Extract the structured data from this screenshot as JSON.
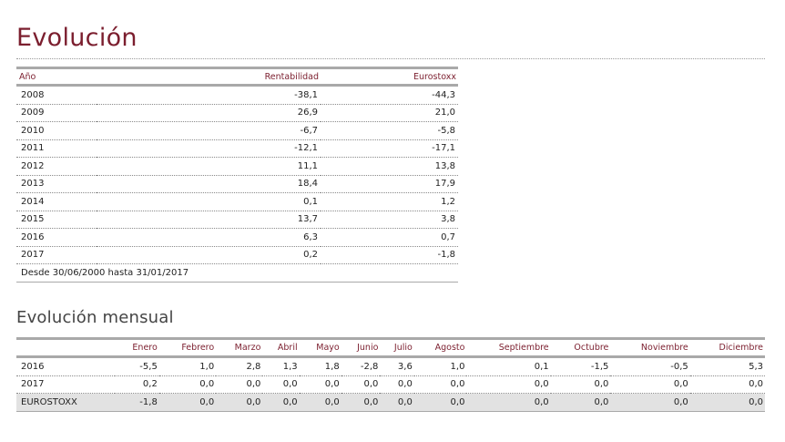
{
  "title": "Evolución",
  "annual": {
    "headers": [
      "Año",
      "Rentabilidad",
      "Eurostoxx"
    ],
    "rows": [
      [
        "2008",
        "-38,1",
        "-44,3"
      ],
      [
        "2009",
        "26,9",
        "21,0"
      ],
      [
        "2010",
        "-6,7",
        "-5,8"
      ],
      [
        "2011",
        "-12,1",
        "-17,1"
      ],
      [
        "2012",
        "11,1",
        "13,8"
      ],
      [
        "2013",
        "18,4",
        "17,9"
      ],
      [
        "2014",
        "0,1",
        "1,2"
      ],
      [
        "2015",
        "13,7",
        "3,8"
      ],
      [
        "2016",
        "6,3",
        "0,7"
      ],
      [
        "2017",
        "0,2",
        "-1,8"
      ]
    ],
    "note": "Desde 30/06/2000 hasta 31/01/2017"
  },
  "subtitle": "Evolución mensual",
  "monthly": {
    "months": [
      "Enero",
      "Febrero",
      "Marzo",
      "Abril",
      "Mayo",
      "Junio",
      "Julio",
      "Agosto",
      "Septiembre",
      "Octubre",
      "Noviembre",
      "Diciembre"
    ],
    "rows": [
      {
        "label": "2016",
        "values": [
          "-5,5",
          "1,0",
          "2,8",
          "1,3",
          "1,8",
          "-2,8",
          "3,6",
          "1,0",
          "0,1",
          "-1,5",
          "-0,5",
          "5,3"
        ]
      },
      {
        "label": "2017",
        "values": [
          "0,2",
          "0,0",
          "0,0",
          "0,0",
          "0,0",
          "0,0",
          "0,0",
          "0,0",
          "0,0",
          "0,0",
          "0,0",
          "0,0"
        ]
      },
      {
        "label": "EUROSTOXX",
        "values": [
          "-1,8",
          "0,0",
          "0,0",
          "0,0",
          "0,0",
          "0,0",
          "0,0",
          "0,0",
          "0,0",
          "0,0",
          "0,0",
          "0,0"
        ]
      }
    ]
  }
}
